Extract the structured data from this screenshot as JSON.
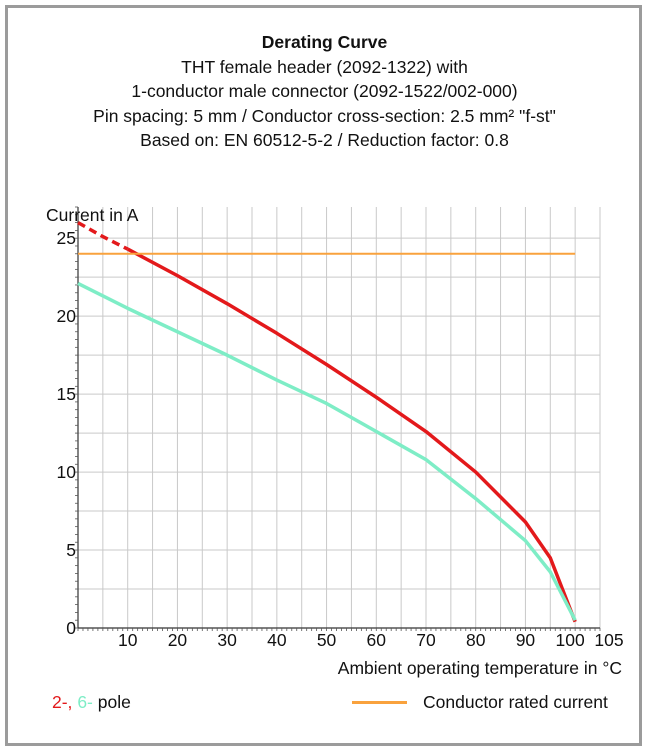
{
  "chart_data": {
    "type": "line",
    "title": "Derating Curve",
    "subtitle": [
      "THT female header (2092-1322) with",
      "1-conductor male connector (2092-1522/002-000)",
      "Pin spacing: 5 mm / Conductor cross-section: 2.5 mm² \"f-st\"",
      "Based on: EN 60512-5-2 / Reduction factor: 0.8"
    ],
    "xlabel": "Ambient operating temperature in °C",
    "ylabel": "Current in A",
    "xlim": [
      0,
      105
    ],
    "ylim": [
      0,
      27
    ],
    "xticks": [
      10,
      20,
      30,
      40,
      50,
      60,
      70,
      80,
      90,
      100,
      105
    ],
    "yticks": [
      0,
      5,
      10,
      15,
      20,
      25
    ],
    "grid": true,
    "series": [
      {
        "name": "2-",
        "color": "#e3191b",
        "dashed_until_x": 10,
        "x": [
          0,
          5,
          10,
          20,
          30,
          40,
          50,
          60,
          70,
          80,
          90,
          95,
          100
        ],
        "y": [
          26.0,
          25.1,
          24.3,
          22.6,
          20.8,
          18.9,
          16.9,
          14.8,
          12.6,
          10.0,
          6.8,
          4.5,
          0.4
        ]
      },
      {
        "name": "6-",
        "color": "#7eedc6",
        "x": [
          0,
          10,
          20,
          30,
          40,
          50,
          60,
          70,
          80,
          90,
          95,
          100
        ],
        "y": [
          22.1,
          20.5,
          19.0,
          17.5,
          15.9,
          14.4,
          12.6,
          10.8,
          8.3,
          5.6,
          3.6,
          0.5
        ]
      },
      {
        "name": "Conductor rated current",
        "color": "#f9a23d",
        "x": [
          0,
          100
        ],
        "y": [
          24,
          24
        ]
      }
    ]
  },
  "legend": {
    "pole_first": "2-,",
    "pole_second": "6-",
    "pole_suffix": "pole",
    "rated": "Conductor rated current"
  }
}
